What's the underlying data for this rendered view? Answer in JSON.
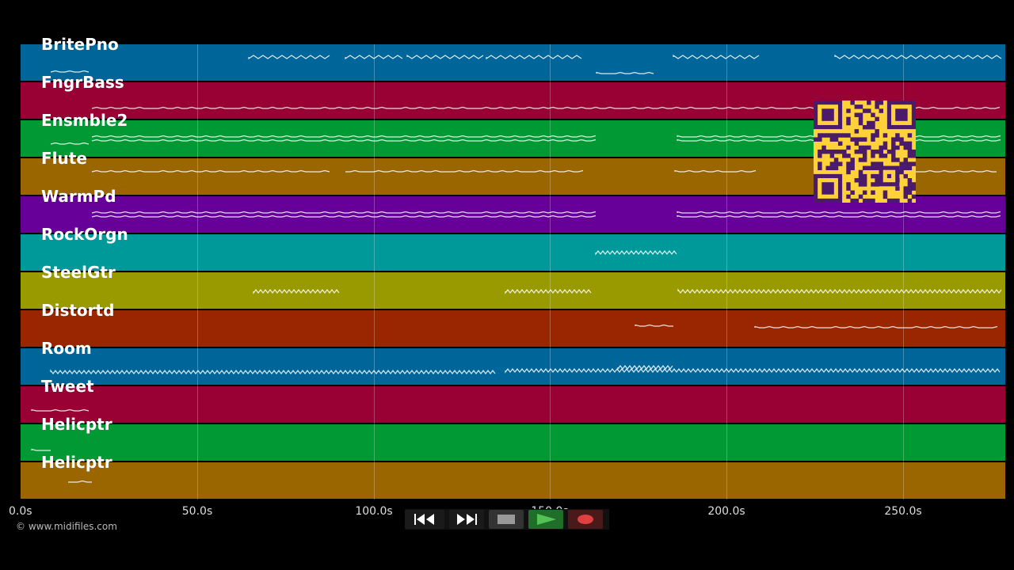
{
  "tracks": [
    {
      "name": "BritePno",
      "color": "#006699"
    },
    {
      "name": "FngrBass",
      "color": "#990033"
    },
    {
      "name": "Ensmble2",
      "color": "#009933"
    },
    {
      "name": "Flute",
      "color": "#996600"
    },
    {
      "name": "WarmPd",
      "color": "#660099"
    },
    {
      "name": "RockOrgn",
      "color": "#009999"
    },
    {
      "name": "SteelGtr",
      "color": "#999900"
    },
    {
      "name": "Distortd",
      "color": "#992600"
    },
    {
      "name": "Room",
      "color": "#006699"
    },
    {
      "name": "Tweet",
      "color": "#990033"
    },
    {
      "name": "Helicptr",
      "color": "#009933"
    },
    {
      "name": "Helicptr",
      "color": "#996600"
    }
  ],
  "timeline": {
    "ticks": [
      "0.0s",
      "50.0s",
      "100.0s",
      "150.0s",
      "200.0s",
      "250.0s"
    ],
    "duration_s": 279
  },
  "transport": {
    "rewind_icon": "rewind-icon",
    "fast_forward_icon": "fast-forward-icon",
    "stop_icon": "stop-icon",
    "play_icon": "play-icon",
    "record_icon": "record-icon"
  },
  "copyright": "© www.midifiles.com",
  "qr": {
    "icon": "qr-code-icon",
    "fg": "#4a1a6b",
    "bg": "#ffd23a"
  }
}
